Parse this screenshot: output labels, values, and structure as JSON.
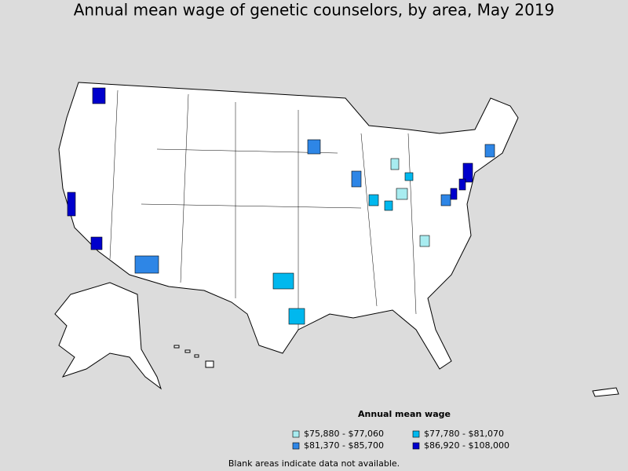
{
  "title": "Annual mean wage of genetic counselors, by area, May 2019",
  "legend": {
    "title": "Annual mean wage",
    "items": [
      {
        "label": "$75,880 - $77,060",
        "color": "#a8ecf0"
      },
      {
        "label": "$77,780 - $81,070",
        "color": "#00b8ee"
      },
      {
        "label": "$81,370 - $85,700",
        "color": "#2e86e6"
      },
      {
        "label": "$86,920 - $108,000",
        "color": "#0000cc"
      }
    ]
  },
  "footnote": "Blank areas indicate data not available."
}
